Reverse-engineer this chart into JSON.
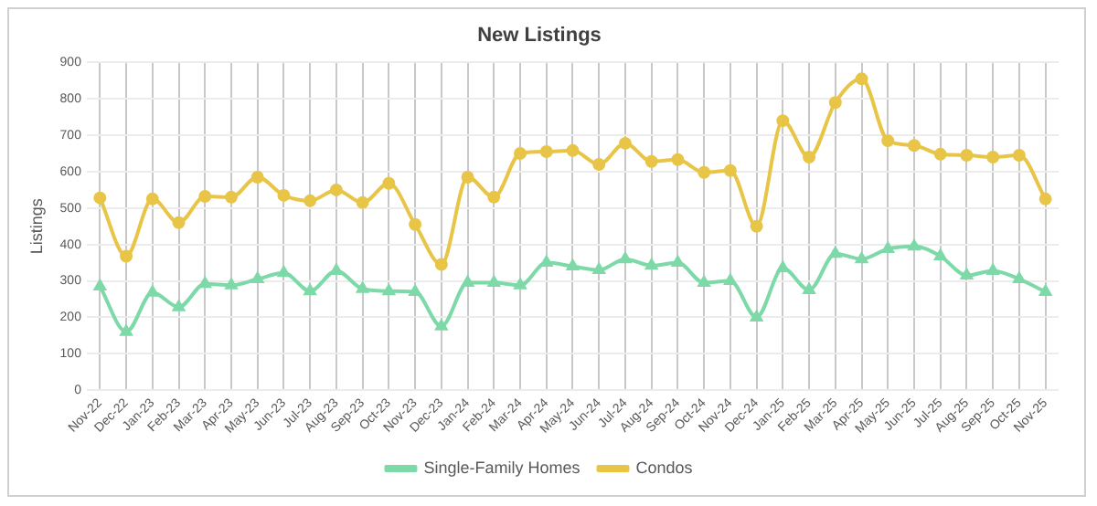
{
  "chart_data": {
    "type": "line",
    "title": "New Listings",
    "ylabel": "Listings",
    "categories": [
      "Nov-22",
      "Dec-22",
      "Jan-23",
      "Feb-23",
      "Mar-23",
      "Apr-23",
      "May-23",
      "Jun-23",
      "Jul-23",
      "Aug-23",
      "Sep-23",
      "Oct-23",
      "Nov-23",
      "Dec-23",
      "Jan-24",
      "Feb-24",
      "Mar-24",
      "Apr-24",
      "May-24",
      "Jun-24",
      "Jul-24",
      "Aug-24",
      "Sep-24",
      "Oct-24",
      "Nov-24",
      "Dec-24",
      "Jan-25",
      "Feb-25",
      "Mar-25",
      "Apr-25",
      "May-25",
      "Jun-25",
      "Jul-25",
      "Aug-25",
      "Sep-25",
      "Oct-25",
      "Nov-25"
    ],
    "series": [
      {
        "name": "Single-Family Homes",
        "color": "#7dd9a8",
        "marker": "triangle",
        "values": [
          285,
          160,
          268,
          228,
          292,
          288,
          305,
          322,
          272,
          328,
          278,
          272,
          270,
          175,
          295,
          295,
          288,
          350,
          340,
          330,
          360,
          342,
          350,
          295,
          300,
          200,
          335,
          275,
          375,
          360,
          388,
          395,
          368,
          315,
          328,
          305,
          270
        ]
      },
      {
        "name": "Condos",
        "color": "#e8c547",
        "marker": "circle",
        "values": [
          528,
          368,
          525,
          460,
          532,
          530,
          585,
          535,
          520,
          550,
          515,
          568,
          455,
          345,
          585,
          530,
          650,
          655,
          658,
          620,
          678,
          628,
          633,
          598,
          603,
          450,
          740,
          640,
          790,
          855,
          685,
          672,
          648,
          645,
          640,
          645,
          525
        ]
      }
    ],
    "ylim": [
      0,
      900
    ],
    "yticks": [
      0,
      100,
      200,
      300,
      400,
      500,
      600,
      700,
      800,
      900
    ],
    "grid": true,
    "legend": "bottom"
  }
}
